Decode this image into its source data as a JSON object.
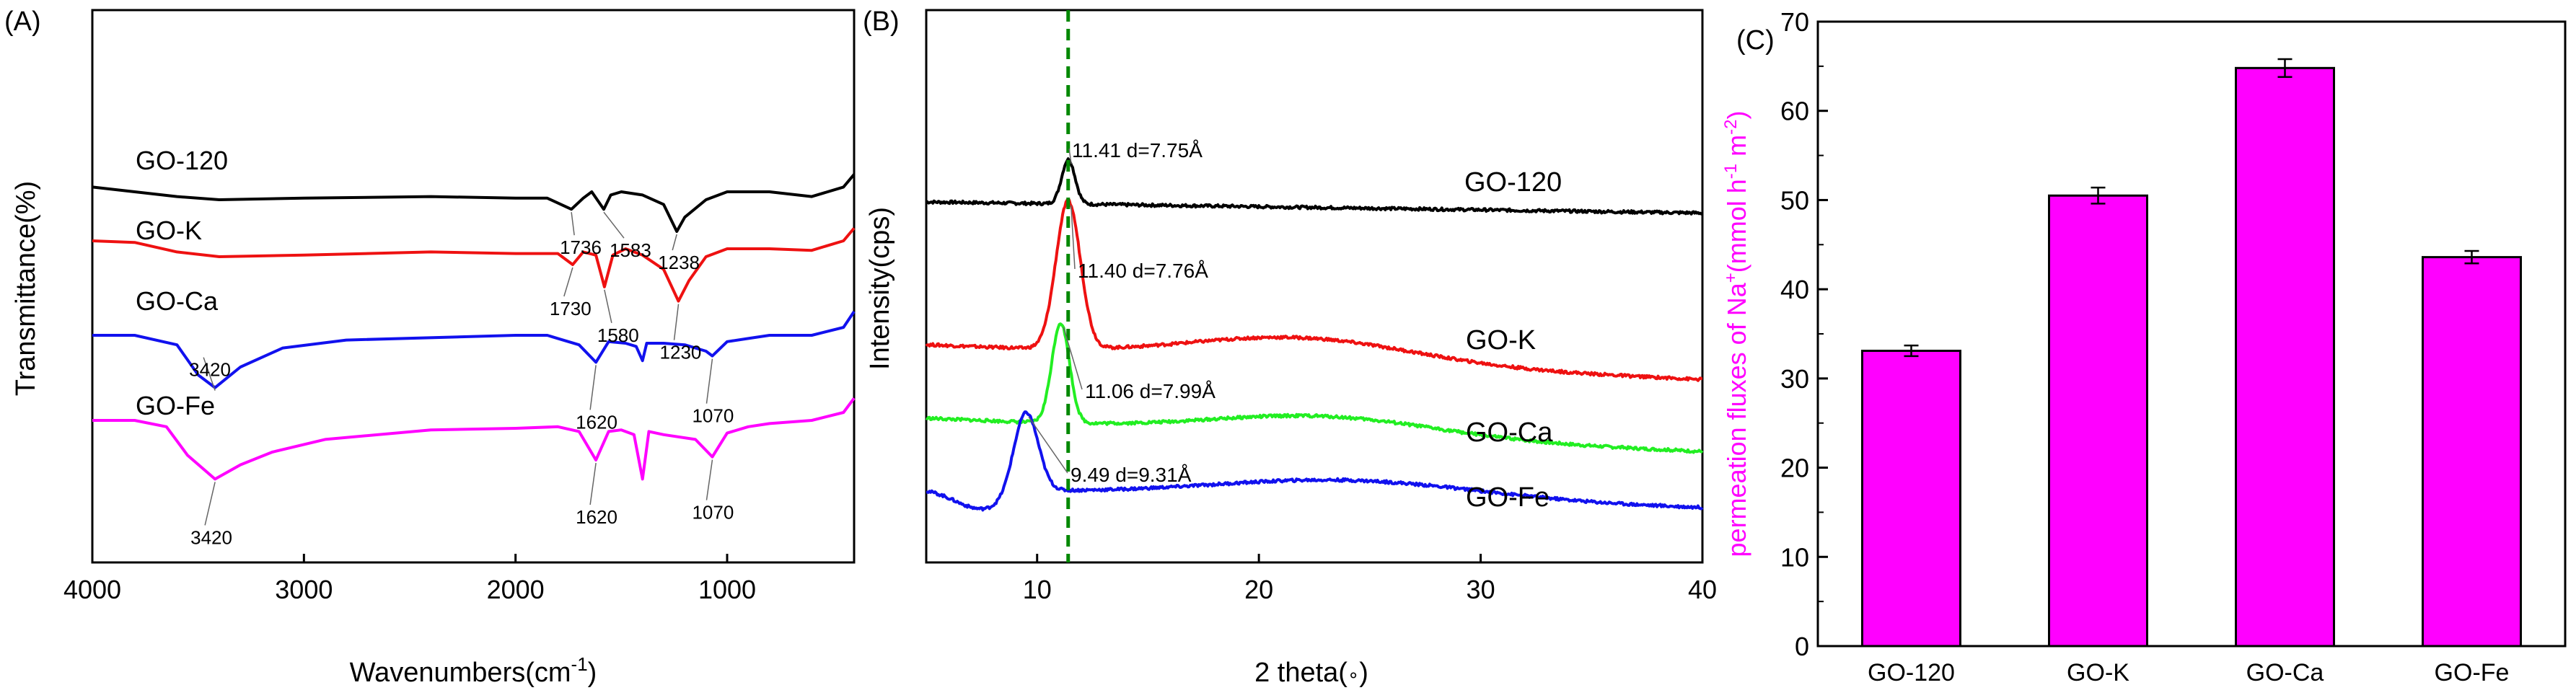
{
  "colors": {
    "black": "#000000",
    "red": "#ee1111",
    "blue": "#1111ee",
    "magenta": "#ff00ff",
    "green": "#22ee22",
    "dashed_line": "#008800"
  },
  "chart_data": [
    {
      "panel": "(A)",
      "type": "line",
      "xlabel": "Wavenumbers(cm",
      "xlabel_sup": "-1",
      "xlabel_end": ")",
      "ylabel": "Transmittance(%)",
      "xlim": [
        4000,
        400
      ],
      "x_ticks": [
        4000,
        3000,
        2000,
        1000
      ],
      "x_reversed": true,
      "series": [
        {
          "name": "GO-120",
          "color": "#000000",
          "points": [
            [
              4000,
              0.03
            ],
            [
              3800,
              0.0
            ],
            [
              3600,
              -0.03
            ],
            [
              3400,
              -0.05
            ],
            [
              3000,
              -0.04
            ],
            [
              2400,
              -0.03
            ],
            [
              2000,
              -0.04
            ],
            [
              1850,
              -0.04
            ],
            [
              1736,
              -0.11
            ],
            [
              1680,
              -0.04
            ],
            [
              1640,
              0.0
            ],
            [
              1583,
              -0.11
            ],
            [
              1550,
              -0.02
            ],
            [
              1500,
              0.0
            ],
            [
              1400,
              -0.02
            ],
            [
              1300,
              -0.08
            ],
            [
              1238,
              -0.25
            ],
            [
              1200,
              -0.16
            ],
            [
              1100,
              -0.05
            ],
            [
              1000,
              0.0
            ],
            [
              800,
              0.0
            ],
            [
              600,
              -0.03
            ],
            [
              450,
              0.03
            ],
            [
              400,
              0.11
            ]
          ]
        },
        {
          "name": "GO-K",
          "color": "#ee1111",
          "points": [
            [
              4000,
              0.05
            ],
            [
              3800,
              0.04
            ],
            [
              3600,
              -0.02
            ],
            [
              3400,
              -0.05
            ],
            [
              3000,
              -0.04
            ],
            [
              2400,
              -0.02
            ],
            [
              2000,
              -0.03
            ],
            [
              1800,
              -0.03
            ],
            [
              1730,
              -0.1
            ],
            [
              1680,
              -0.02
            ],
            [
              1620,
              -0.04
            ],
            [
              1580,
              -0.24
            ],
            [
              1540,
              -0.04
            ],
            [
              1480,
              0.0
            ],
            [
              1400,
              -0.04
            ],
            [
              1300,
              -0.13
            ],
            [
              1230,
              -0.33
            ],
            [
              1180,
              -0.2
            ],
            [
              1100,
              -0.05
            ],
            [
              1000,
              0.0
            ],
            [
              800,
              0.0
            ],
            [
              600,
              -0.01
            ],
            [
              450,
              0.05
            ],
            [
              400,
              0.13
            ]
          ]
        },
        {
          "name": "GO-Ca",
          "color": "#1111ee",
          "points": [
            [
              4000,
              0.0
            ],
            [
              3800,
              0.0
            ],
            [
              3600,
              -0.06
            ],
            [
              3500,
              -0.25
            ],
            [
              3420,
              -0.33
            ],
            [
              3300,
              -0.2
            ],
            [
              3100,
              -0.08
            ],
            [
              2800,
              -0.03
            ],
            [
              2000,
              0.0
            ],
            [
              1850,
              0.0
            ],
            [
              1800,
              -0.02
            ],
            [
              1700,
              -0.06
            ],
            [
              1620,
              -0.17
            ],
            [
              1560,
              -0.04
            ],
            [
              1480,
              -0.05
            ],
            [
              1430,
              -0.07
            ],
            [
              1400,
              -0.16
            ],
            [
              1380,
              -0.05
            ],
            [
              1300,
              -0.05
            ],
            [
              1200,
              -0.06
            ],
            [
              1100,
              -0.1
            ],
            [
              1070,
              -0.13
            ],
            [
              1000,
              -0.04
            ],
            [
              900,
              -0.02
            ],
            [
              800,
              0.0
            ],
            [
              600,
              0.0
            ],
            [
              450,
              0.05
            ],
            [
              400,
              0.15
            ]
          ]
        },
        {
          "name": "GO-Fe",
          "color": "#ff00ff",
          "points": [
            [
              4000,
              0.0
            ],
            [
              3800,
              0.0
            ],
            [
              3650,
              -0.04
            ],
            [
              3550,
              -0.22
            ],
            [
              3420,
              -0.37
            ],
            [
              3300,
              -0.28
            ],
            [
              3150,
              -0.2
            ],
            [
              2900,
              -0.12
            ],
            [
              2400,
              -0.06
            ],
            [
              2000,
              -0.05
            ],
            [
              1800,
              -0.04
            ],
            [
              1700,
              -0.07
            ],
            [
              1620,
              -0.25
            ],
            [
              1560,
              -0.07
            ],
            [
              1500,
              -0.06
            ],
            [
              1440,
              -0.09
            ],
            [
              1400,
              -0.37
            ],
            [
              1370,
              -0.07
            ],
            [
              1300,
              -0.09
            ],
            [
              1150,
              -0.12
            ],
            [
              1070,
              -0.23
            ],
            [
              1000,
              -0.08
            ],
            [
              900,
              -0.04
            ],
            [
              800,
              -0.02
            ],
            [
              600,
              0.0
            ],
            [
              450,
              0.05
            ],
            [
              400,
              0.14
            ]
          ]
        }
      ],
      "labels": [
        {
          "text": "GO-120",
          "series": "GO-120"
        },
        {
          "text": "GO-K",
          "series": "GO-K"
        },
        {
          "text": "GO-Ca",
          "series": "GO-Ca"
        },
        {
          "text": "GO-Fe",
          "series": "GO-Fe"
        }
      ],
      "peak_labels": [
        {
          "text": "1736",
          "series": "GO-120",
          "x": 1736
        },
        {
          "text": "1583",
          "series": "GO-120",
          "x": 1583
        },
        {
          "text": "1238",
          "series": "GO-120",
          "x": 1238
        },
        {
          "text": "1730",
          "series": "GO-K",
          "x": 1730
        },
        {
          "text": "1580",
          "series": "GO-K",
          "x": 1580
        },
        {
          "text": "1230",
          "series": "GO-K",
          "x": 1230
        },
        {
          "text": "3420",
          "series": "GO-Ca",
          "x": 3420
        },
        {
          "text": "1620",
          "series": "GO-Ca",
          "x": 1620
        },
        {
          "text": "1070",
          "series": "GO-Ca",
          "x": 1070
        },
        {
          "text": "3420",
          "series": "GO-Fe",
          "x": 3420
        },
        {
          "text": "1620",
          "series": "GO-Fe",
          "x": 1620
        },
        {
          "text": "1070",
          "series": "GO-Fe",
          "x": 1070
        }
      ]
    },
    {
      "panel": "(B)",
      "type": "line",
      "xlabel": "2 theta(",
      "xlabel_deg": "∘",
      "xlabel_end": ")",
      "ylabel": "Intensity(cps)",
      "xlim": [
        5,
        40
      ],
      "x_ticks": [
        10,
        20,
        30,
        40
      ],
      "reference_line": {
        "x": 11.4,
        "style": "dashed",
        "color": "#008800"
      },
      "series": [
        {
          "name": "GO-120",
          "color": "#000000",
          "peak": {
            "x": 11.41,
            "amp": 0.28,
            "sigma": 0.3
          },
          "hump": {
            "x": 22,
            "amp": 0.0,
            "sigma": 5
          },
          "baseline": [
            0.0,
            -0.07
          ]
        },
        {
          "name": "GO-K",
          "color": "#ee1111",
          "peak": {
            "x": 11.4,
            "amp": 0.93,
            "sigma": 0.55
          },
          "hump": {
            "x": 22,
            "amp": 0.15,
            "sigma": 5
          },
          "baseline": [
            0.0,
            -0.22
          ]
        },
        {
          "name": "GO-Ca",
          "color": "#22ee22",
          "peak": {
            "x": 11.06,
            "amp": 0.63,
            "sigma": 0.4
          },
          "hump": {
            "x": 23,
            "amp": 0.12,
            "sigma": 5
          },
          "baseline": [
            0.0,
            -0.21
          ]
        },
        {
          "name": "GO-Fe",
          "color": "#1111ee",
          "peak": {
            "x": 9.49,
            "amp": 0.52,
            "sigma": 0.55
          },
          "hump": {
            "x": 24,
            "amp": 0.12,
            "sigma": 6
          },
          "baseline": [
            0.0,
            -0.12
          ],
          "dip": {
            "x": 7.5,
            "amp": -0.12,
            "sigma": 1.2
          }
        }
      ],
      "labels": [
        {
          "text": "GO-120",
          "series": "GO-120"
        },
        {
          "text": "GO-K",
          "series": "GO-K"
        },
        {
          "text": "GO-Ca",
          "series": "GO-Ca"
        },
        {
          "text": "GO-Fe",
          "series": "GO-Fe"
        }
      ],
      "peak_labels": [
        {
          "text": "11.41 d=7.75Å",
          "series": "GO-120"
        },
        {
          "text": "11.40 d=7.76Å",
          "series": "GO-K"
        },
        {
          "text": "11.06 d=7.99Å",
          "series": "GO-Ca"
        },
        {
          "text": "9.49 d=9.31Å",
          "series": "GO-Fe"
        }
      ]
    },
    {
      "panel": "(C)",
      "type": "bar",
      "ylabel": "permeation fluxes of Na",
      "ylabel_sup1": "+",
      "ylabel_mid": "(mmol h",
      "ylabel_sup2": "-1",
      "ylabel_mid2": " m",
      "ylabel_sup3": "-2",
      "ylabel_end": ")",
      "ylim": [
        0,
        70
      ],
      "y_ticks": [
        0,
        10,
        20,
        30,
        40,
        50,
        60,
        70
      ],
      "categories": [
        "GO-120",
        "GO-K",
        "GO-Ca",
        "GO-Fe"
      ],
      "values": [
        33.1,
        50.5,
        64.8,
        43.6
      ],
      "errors": [
        0.6,
        0.9,
        1.0,
        0.7
      ],
      "bar_color": "#ff00ff"
    }
  ]
}
